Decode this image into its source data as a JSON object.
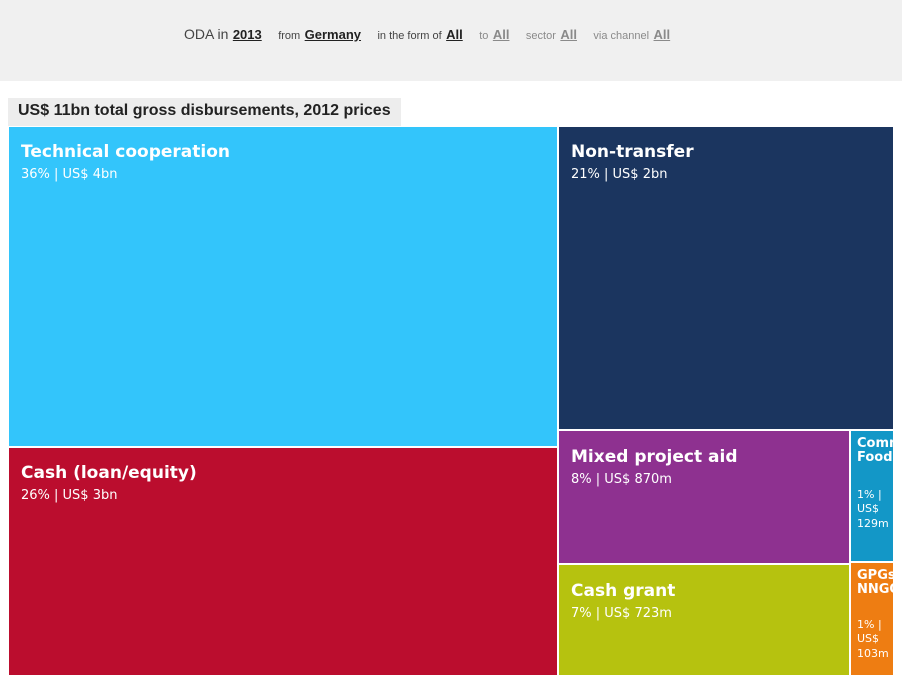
{
  "filters": {
    "oda_label": "ODA in",
    "year": "2013",
    "from_label": "from",
    "donor": "Germany",
    "form_label": "in the form of",
    "form": "All",
    "to_label": "to",
    "recipient": "All",
    "sector_label": "sector",
    "sector": "All",
    "channel_label": "via channel",
    "channel": "All"
  },
  "chart_data": {
    "type": "treemap",
    "title": "US$ 11bn total gross disbursements, 2012 prices",
    "total_label": "US$ 11bn",
    "unit": "US$",
    "items": [
      {
        "name": "Technical cooperation",
        "value_label": "36% | US$ 4bn",
        "percent": 36,
        "value": 4000,
        "color": "#33c5fb"
      },
      {
        "name": "Non-transfer",
        "value_label": "21% | US$ 2bn",
        "percent": 21,
        "value": 2000,
        "color": "#1b355f"
      },
      {
        "name": "Cash (loan/equity)",
        "value_label": "26% | US$ 3bn",
        "percent": 26,
        "value": 3000,
        "color": "#bb0d2e"
      },
      {
        "name": "Mixed project aid",
        "value_label": "8% | US$ 870m",
        "percent": 8,
        "value": 870,
        "color": "#8e3190"
      },
      {
        "name": "Cash grant",
        "value_label": "7% | US$ 723m",
        "percent": 7,
        "value": 723,
        "color": "#b6c20f"
      },
      {
        "name": "Commodities & Food",
        "display_name": "Comm & Food",
        "value_label": "1% | US$ 129m",
        "percent": 1,
        "value": 129,
        "color": "#1397c7"
      },
      {
        "name": "GPGs & NNGO",
        "display_name": "GPGs & NNGO",
        "value_label": "1% | US$ 103m",
        "percent": 1,
        "value": 103,
        "color": "#ee7d12"
      }
    ]
  }
}
